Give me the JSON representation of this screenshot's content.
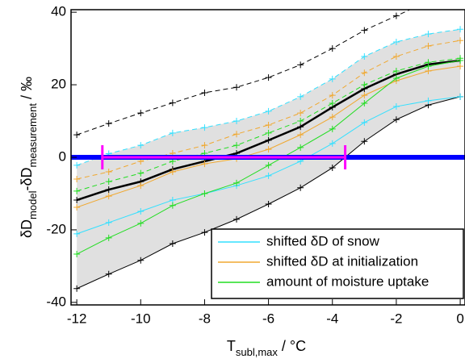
{
  "chart_data": {
    "type": "line",
    "x": [
      -12,
      -11,
      -10,
      -9,
      -8,
      -7,
      -6,
      -5,
      -4,
      -3,
      -2,
      -1,
      0
    ],
    "xlabel_parts": [
      "T",
      "subl,max",
      " / °C"
    ],
    "ylabel_parts": [
      "δD",
      "model",
      "-δD",
      "measurement",
      " / ‰"
    ],
    "xlim": [
      -12.18,
      0.15
    ],
    "ylim": [
      -40.7,
      40.7
    ],
    "xticks": [
      -12,
      -10,
      -8,
      -6,
      -4,
      -2,
      0
    ],
    "yticks": [
      -40,
      -20,
      0,
      20,
      40
    ],
    "band_color": "#e0e0e0",
    "hline": {
      "value": 0,
      "color": "#0000ff"
    },
    "range_bar": {
      "xmin": -11.2,
      "xmax": -3.6,
      "y": 0,
      "color": "#ff00ff"
    },
    "series": [
      {
        "color": "#000000",
        "dashed": true,
        "width": 1,
        "values": [
          6.2,
          9.3,
          12.2,
          15,
          17.8,
          19.3,
          22,
          25.5,
          30,
          35,
          39,
          43,
          46
        ]
      },
      {
        "color": "#000000",
        "dashed": false,
        "width": 1,
        "values": [
          -36.2,
          -32.2,
          -28.4,
          -23.8,
          -20.7,
          -17.1,
          -12.9,
          -8.4,
          -2.9,
          4.4,
          10.4,
          14.4,
          16.7
        ]
      },
      {
        "color": "#000000",
        "dashed": false,
        "width": 2.5,
        "values": [
          -11.8,
          -8.9,
          -6.7,
          -3.3,
          -1.1,
          1.1,
          4.7,
          8.4,
          13.8,
          18.9,
          22.9,
          25.6,
          26.7
        ]
      },
      {
        "color": "#33e0ff",
        "dashed": true,
        "width": 1,
        "values": [
          -2.2,
          1,
          3.3,
          6.7,
          8.2,
          10,
          12.7,
          16.7,
          21.6,
          27.8,
          31.8,
          34,
          35.3
        ]
      },
      {
        "name": "shifted δD of snow",
        "color": "#33e0ff",
        "dashed": false,
        "width": 1,
        "values": [
          -21.1,
          -18,
          -14.9,
          -11.8,
          -10,
          -7.8,
          -5.1,
          -1.1,
          3.8,
          9.6,
          14,
          15.6,
          16.7
        ]
      },
      {
        "color": "#f0a830",
        "dashed": true,
        "width": 1,
        "values": [
          -6,
          -4,
          -1.1,
          1.1,
          3.3,
          6.4,
          8.9,
          12.2,
          17.1,
          23.3,
          27.8,
          30.7,
          32.2
        ]
      },
      {
        "name": "shifted δD at initialization",
        "color": "#f0a830",
        "dashed": false,
        "width": 1,
        "values": [
          -13.8,
          -10.7,
          -7.8,
          -4,
          -1.8,
          -0.4,
          2.2,
          6.2,
          11.1,
          17.1,
          21.1,
          23.8,
          25.1
        ]
      },
      {
        "color": "#22dd22",
        "dashed": true,
        "width": 1,
        "values": [
          -9.3,
          -6.7,
          -4.4,
          -1.1,
          1.1,
          3.3,
          6.7,
          10,
          14.9,
          20,
          23.8,
          26.2,
          27.3
        ]
      },
      {
        "name": "amount of moisture uptake",
        "color": "#22dd22",
        "dashed": false,
        "width": 1,
        "values": [
          -26.7,
          -22.2,
          -18.2,
          -13.3,
          -10,
          -7.1,
          -2.2,
          2.7,
          7.8,
          14.9,
          21.8,
          25.1,
          26.7
        ]
      }
    ]
  }
}
